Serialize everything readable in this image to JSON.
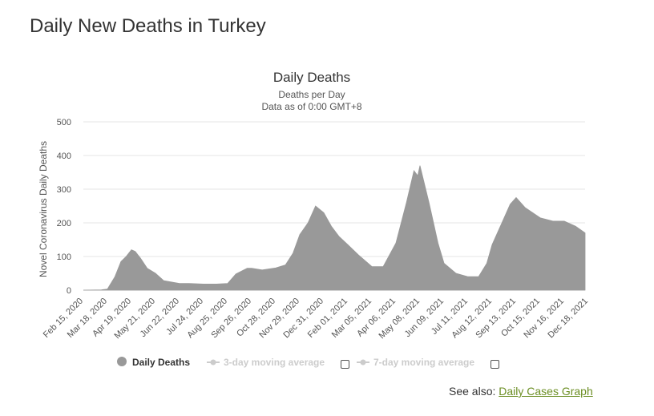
{
  "page": {
    "heading": "Daily New Deaths in Turkey"
  },
  "chart": {
    "title": "Daily Deaths",
    "subtitle_1": "Deaths per Day",
    "subtitle_2": "Data as of 0:00 GMT+8"
  },
  "legend": {
    "items": [
      {
        "label": "Daily Deaths",
        "active": true
      },
      {
        "label": "3-day moving average",
        "active": false
      },
      {
        "label": "7-day moving average",
        "active": false
      }
    ]
  },
  "see_also": {
    "prefix": "See also:",
    "link_text": "Daily Cases Graph"
  },
  "colors": {
    "series": "#999999",
    "grid": "#e6e6e6",
    "inactive_legend": "#cccccc",
    "link": "#6b8e23"
  },
  "chart_data": {
    "type": "area",
    "title": "Daily Deaths",
    "subtitle": [
      "Deaths per Day",
      "Data as of 0:00 GMT+8"
    ],
    "xlabel": "",
    "ylabel": "Novel Coronavirus Daily Deaths",
    "ylim": [
      0,
      500
    ],
    "yticks": [
      0,
      100,
      200,
      300,
      400,
      500
    ],
    "xticks": [
      "Feb 15, 2020",
      "Mar 18, 2020",
      "Apr 19, 2020",
      "May 21, 2020",
      "Jun 22, 2020",
      "Jul 24, 2020",
      "Aug 25, 2020",
      "Sep 26, 2020",
      "Oct 28, 2020",
      "Nov 29, 2020",
      "Dec 31, 2020",
      "Feb 01, 2021",
      "Mar 05, 2021",
      "Apr 06, 2021",
      "May 08, 2021",
      "Jun 09, 2021",
      "Jul 11, 2021",
      "Aug 12, 2021",
      "Sep 13, 2021",
      "Oct 15, 2021",
      "Nov 16, 2021",
      "Dec 18, 2021"
    ],
    "grid": true,
    "legend_position": "bottom",
    "series": [
      {
        "name": "Daily Deaths",
        "x": [
          "Feb 15, 2020",
          "Mar 10, 2020",
          "Mar 18, 2020",
          "Mar 28, 2020",
          "Apr 05, 2020",
          "Apr 12, 2020",
          "Apr 19, 2020",
          "Apr 24, 2020",
          "May 01, 2020",
          "May 10, 2020",
          "May 21, 2020",
          "Jun 01, 2020",
          "Jun 22, 2020",
          "Jul 05, 2020",
          "Jul 24, 2020",
          "Aug 10, 2020",
          "Aug 25, 2020",
          "Sep 05, 2020",
          "Sep 20, 2020",
          "Sep 26, 2020",
          "Oct 10, 2020",
          "Oct 28, 2020",
          "Nov 10, 2020",
          "Nov 20, 2020",
          "Nov 29, 2020",
          "Dec 10, 2020",
          "Dec 20, 2020",
          "Dec 31, 2020",
          "Jan 10, 2021",
          "Jan 20, 2021",
          "Feb 01, 2021",
          "Feb 15, 2021",
          "Mar 05, 2021",
          "Mar 20, 2021",
          "Apr 06, 2021",
          "Apr 20, 2021",
          "Apr 30, 2021",
          "May 05, 2021",
          "May 08, 2021",
          "May 20, 2021",
          "Jun 01, 2021",
          "Jun 09, 2021",
          "Jun 25, 2021",
          "Jul 11, 2021",
          "Jul 25, 2021",
          "Aug 05, 2021",
          "Aug 12, 2021",
          "Aug 25, 2021",
          "Sep 05, 2021",
          "Sep 13, 2021",
          "Sep 25, 2021",
          "Oct 15, 2021",
          "Nov 01, 2021",
          "Nov 16, 2021",
          "Dec 01, 2021",
          "Dec 18, 2021",
          "Dec 31, 2021"
        ],
        "values": [
          0,
          1,
          3,
          40,
          85,
          100,
          120,
          115,
          95,
          65,
          50,
          28,
          20,
          20,
          18,
          18,
          20,
          48,
          65,
          65,
          60,
          66,
          75,
          110,
          165,
          200,
          250,
          230,
          190,
          160,
          135,
          105,
          70,
          70,
          140,
          260,
          355,
          340,
          370,
          260,
          140,
          80,
          50,
          40,
          40,
          80,
          135,
          200,
          255,
          275,
          245,
          215,
          205,
          205,
          190,
          170,
          140
        ]
      }
    ]
  }
}
